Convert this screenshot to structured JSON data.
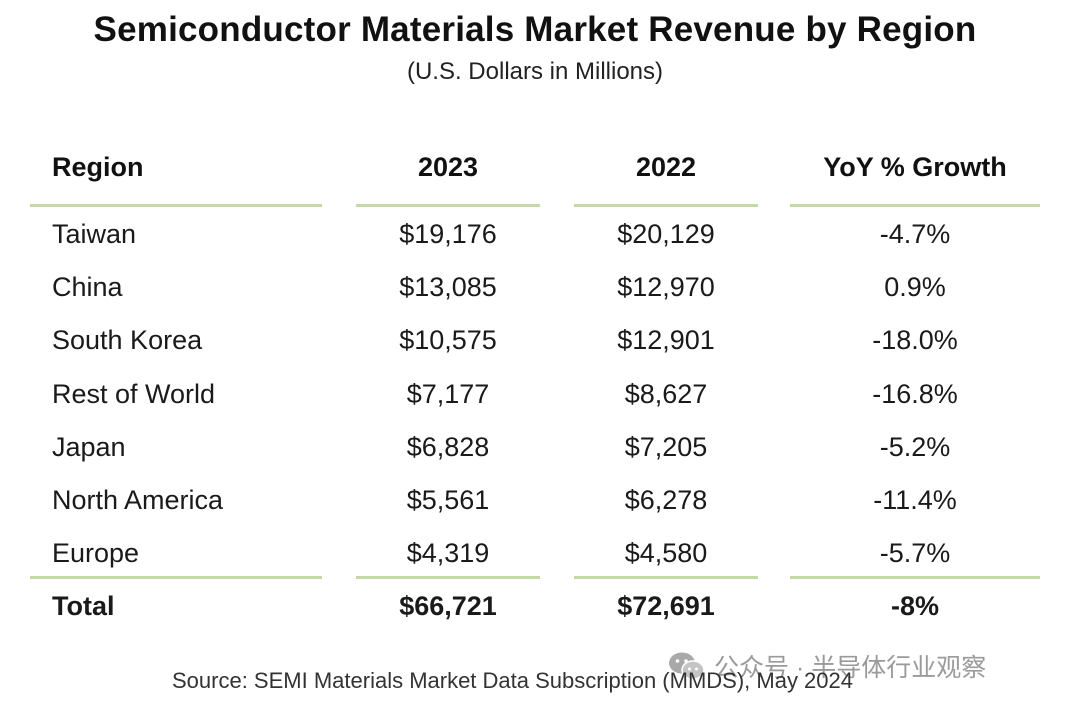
{
  "title": "Semiconductor Materials Market Revenue by Region",
  "subtitle": "(U.S. Dollars in Millions)",
  "headers": [
    "Region",
    "2023",
    "2022",
    "YoY % Growth"
  ],
  "rows": [
    [
      "Taiwan",
      "$19,176",
      "$20,129",
      "-4.7%"
    ],
    [
      "China",
      "$13,085",
      "$12,970",
      "0.9%"
    ],
    [
      "South Korea",
      "$10,575",
      "$12,901",
      "-18.0%"
    ],
    [
      "Rest of World",
      "$7,177",
      "$8,627",
      "-16.8%"
    ],
    [
      "Japan",
      "$6,828",
      "$7,205",
      "-5.2%"
    ],
    [
      "North America",
      "$5,561",
      "$6,278",
      "-11.4%"
    ],
    [
      "Europe",
      "$4,319",
      "$4,580",
      "-5.7%"
    ]
  ],
  "total": [
    "Total",
    "$66,721",
    "$72,691",
    "-8%"
  ],
  "source": "Source: SEMI Materials Market Data Subscription (MMDS), May 2024",
  "watermark": "公众号 · 半导体行业观察",
  "colors": {
    "rule": "#c5d9a6",
    "text": "#1a1a1a"
  },
  "chart_data": {
    "type": "table",
    "title": "Semiconductor Materials Market Revenue by Region",
    "subtitle": "(U.S. Dollars in Millions)",
    "columns": [
      "Region",
      "2023",
      "2022",
      "YoY % Growth"
    ],
    "categories": [
      "Taiwan",
      "China",
      "South Korea",
      "Rest of World",
      "Japan",
      "North America",
      "Europe"
    ],
    "series": [
      {
        "name": "2023",
        "values": [
          19176,
          13085,
          10575,
          7177,
          6828,
          5561,
          4319
        ]
      },
      {
        "name": "2022",
        "values": [
          20129,
          12970,
          12901,
          8627,
          7205,
          6278,
          4580
        ]
      },
      {
        "name": "YoY % Growth",
        "values": [
          -4.7,
          0.9,
          -18.0,
          -16.8,
          -5.2,
          -11.4,
          -5.7
        ]
      }
    ],
    "totals": {
      "2023": 66721,
      "2022": 72691,
      "YoY % Growth": -8
    }
  }
}
